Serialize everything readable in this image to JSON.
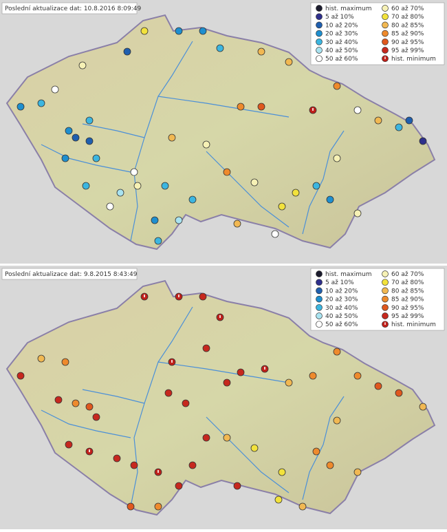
{
  "panels": [
    {
      "timestamp": "Poslední aktualizace dat: 10.8.2016 8:09:49",
      "legend": [
        {
          "label": "hist. maximum",
          "color": "#1c1c2e"
        },
        {
          "label": "5 až 10%",
          "color": "#2e2f8c"
        },
        {
          "label": "10 až 20%",
          "color": "#1f5faf"
        },
        {
          "label": "20 až 30%",
          "color": "#1e8fcf"
        },
        {
          "label": "30 až 40%",
          "color": "#3cb6e0"
        },
        {
          "label": "40 až 50%",
          "color": "#a9e3f0"
        },
        {
          "label": "50 až 60%",
          "color": "#ffffff"
        },
        {
          "label": "60 až 70%",
          "color": "#f6f1b5"
        },
        {
          "label": "70 až 80%",
          "color": "#f2e23c"
        },
        {
          "label": "80 až 85%",
          "color": "#f1b852"
        },
        {
          "label": "85 až 90%",
          "color": "#ee8a2c"
        },
        {
          "label": "90 až 95%",
          "color": "#df581e"
        },
        {
          "label": "95 až 99%",
          "color": "#c6281e"
        },
        {
          "label": "hist. minimum",
          "color": "#c0201a"
        }
      ]
    },
    {
      "timestamp": "Poslední aktualizace dat: 9.8.2015 8:43:49",
      "legend": [
        {
          "label": "hist. maximum",
          "color": "#1c1c2e"
        },
        {
          "label": "5 až 10%",
          "color": "#2e2f8c"
        },
        {
          "label": "10 až 20%",
          "color": "#1f5faf"
        },
        {
          "label": "20 až 30%",
          "color": "#1e8fcf"
        },
        {
          "label": "30 až 40%",
          "color": "#3cb6e0"
        },
        {
          "label": "40 až 50%",
          "color": "#a9e3f0"
        },
        {
          "label": "50 až 60%",
          "color": "#ffffff"
        },
        {
          "label": "60 až 70%",
          "color": "#f6f1b5"
        },
        {
          "label": "70 až 80%",
          "color": "#f2e23c"
        },
        {
          "label": "80 až 85%",
          "color": "#f1b852"
        },
        {
          "label": "85 až 90%",
          "color": "#ee8a2c"
        },
        {
          "label": "90 až 95%",
          "color": "#df581e"
        },
        {
          "label": "95 až 99%",
          "color": "#c6281e"
        },
        {
          "label": "hist. minimum",
          "color": "#c0201a"
        }
      ]
    }
  ]
}
